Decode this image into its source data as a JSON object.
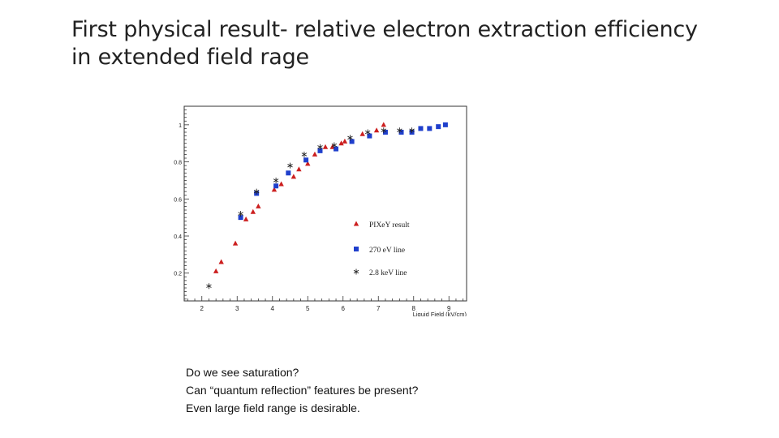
{
  "slide": {
    "title": "First physical result- relative electron extraction efficiency in extended field rage",
    "notes": [
      "Do we see saturation?",
      "Can “quantum reflection” features be present?",
      "Even large field range is desirable."
    ]
  },
  "chart_data": {
    "type": "scatter",
    "title": "",
    "xlabel": "Liquid Field (kV/cm)",
    "ylabel": "",
    "xlim": [
      1.5,
      9.5
    ],
    "ylim": [
      0.05,
      1.1
    ],
    "xticks": [
      2,
      3,
      4,
      5,
      6,
      7,
      8,
      9
    ],
    "yticks": [
      0.2,
      0.4,
      0.6,
      0.8,
      1
    ],
    "ytick_labels": [
      "0.2",
      "0.4",
      "0.6",
      "0.8",
      "1"
    ],
    "grid": true,
    "legend_position": "right-middle",
    "series": [
      {
        "name": "PIXeY result",
        "marker": "triangle",
        "color": "#cc1f1f",
        "x": [
          2.4,
          2.55,
          2.95,
          3.25,
          3.45,
          3.6,
          4.05,
          4.25,
          4.6,
          4.75,
          5.0,
          5.2,
          5.5,
          5.7,
          5.95,
          6.05,
          6.55,
          6.95,
          7.15
        ],
        "y": [
          0.21,
          0.26,
          0.36,
          0.49,
          0.53,
          0.56,
          0.65,
          0.68,
          0.72,
          0.76,
          0.79,
          0.84,
          0.88,
          0.88,
          0.9,
          0.91,
          0.95,
          0.97,
          1.0
        ]
      },
      {
        "name": "270 eV line",
        "marker": "square",
        "color": "#1f3fcc",
        "x": [
          3.1,
          3.55,
          4.1,
          4.45,
          4.95,
          5.35,
          5.8,
          6.25,
          6.75,
          7.2,
          7.65,
          7.95,
          8.2,
          8.45,
          8.7,
          8.9
        ],
        "y": [
          0.5,
          0.63,
          0.67,
          0.74,
          0.81,
          0.86,
          0.87,
          0.91,
          0.94,
          0.96,
          0.96,
          0.96,
          0.98,
          0.98,
          0.99,
          1.0
        ]
      },
      {
        "name": "2.8 keV line",
        "marker": "star",
        "color": "#222222",
        "x": [
          2.2,
          3.1,
          3.55,
          4.1,
          4.5,
          4.9,
          5.35,
          5.75,
          6.2,
          6.7,
          7.15,
          7.6,
          7.95
        ],
        "y": [
          0.13,
          0.52,
          0.64,
          0.7,
          0.78,
          0.84,
          0.88,
          0.89,
          0.93,
          0.96,
          0.97,
          0.97,
          0.97
        ]
      }
    ]
  }
}
